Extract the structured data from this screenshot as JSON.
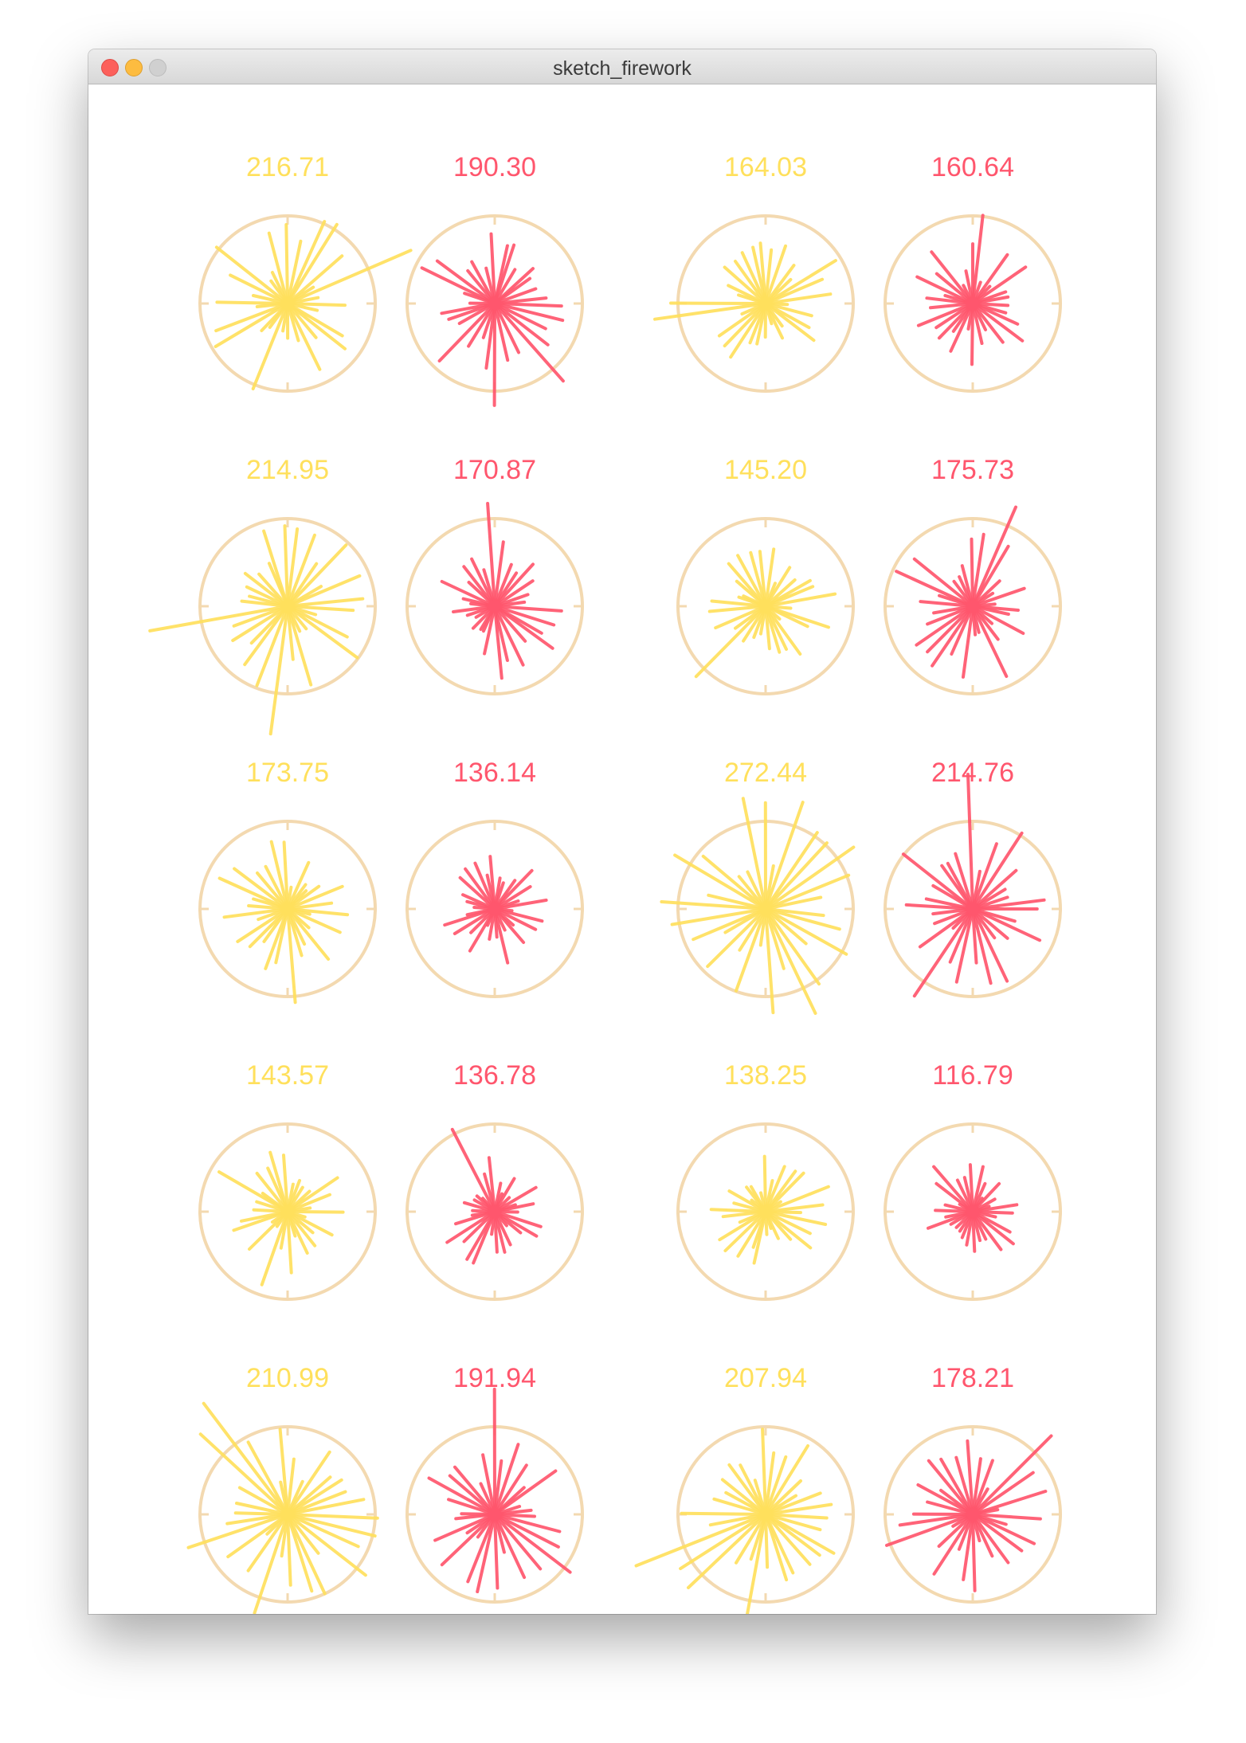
{
  "window": {
    "title": "sketch_firework"
  },
  "colors": {
    "yellow": "#ffe05c",
    "pink": "#ff566d",
    "ring": "#f3d9b0"
  },
  "cells": [
    {
      "label": "216.71",
      "color": "yellow"
    },
    {
      "label": "190.30",
      "color": "pink"
    },
    {
      "label": "164.03",
      "color": "yellow"
    },
    {
      "label": "160.64",
      "color": "pink"
    },
    {
      "label": "214.95",
      "color": "yellow"
    },
    {
      "label": "170.87",
      "color": "pink"
    },
    {
      "label": "145.20",
      "color": "yellow"
    },
    {
      "label": "175.73",
      "color": "pink"
    },
    {
      "label": "173.75",
      "color": "yellow"
    },
    {
      "label": "136.14",
      "color": "pink"
    },
    {
      "label": "272.44",
      "color": "yellow"
    },
    {
      "label": "214.76",
      "color": "pink"
    },
    {
      "label": "143.57",
      "color": "yellow"
    },
    {
      "label": "136.78",
      "color": "pink"
    },
    {
      "label": "138.25",
      "color": "yellow"
    },
    {
      "label": "116.79",
      "color": "pink"
    },
    {
      "label": "210.99",
      "color": "yellow"
    },
    {
      "label": "191.94",
      "color": "pink"
    },
    {
      "label": "207.94",
      "color": "yellow"
    },
    {
      "label": "178.21",
      "color": "pink"
    }
  ]
}
